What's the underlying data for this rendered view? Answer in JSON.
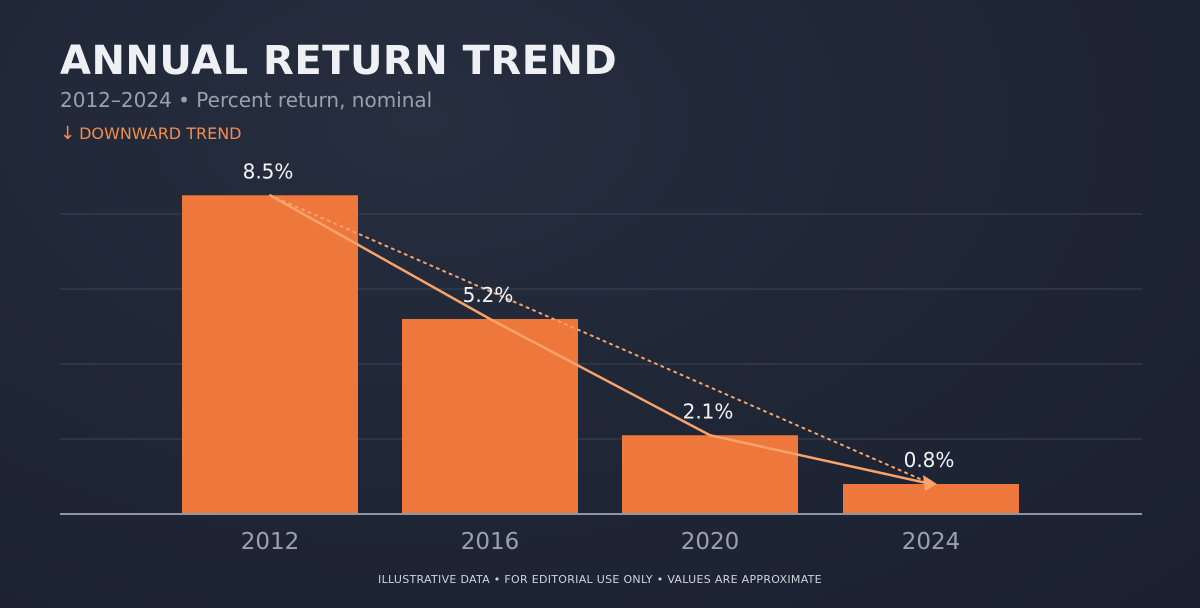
{
  "header": {
    "title": "ANNUAL RETURN TREND",
    "subtitle": "2012–2024 • Percent return, nominal",
    "trend_arrow": "↓",
    "trend_label": "DOWNWARD TREND"
  },
  "footer": {
    "note": "ILLUSTRATIVE DATA • FOR EDITORIAL USE ONLY • VALUES ARE APPROXIMATE"
  },
  "colors": {
    "bar": "#ee773c",
    "trend_line": "#f7a36c",
    "grid": "#3a4356",
    "axis": "#8e96a4",
    "tick_label": "#9aa1ad",
    "data_label": "#f2f3f5"
  },
  "chart_data": {
    "type": "bar",
    "categories": [
      "2012",
      "2016",
      "2020",
      "2024"
    ],
    "values": [
      8.5,
      5.2,
      2.1,
      0.8
    ],
    "data_labels": [
      "8.5%",
      "5.2%",
      "2.1%",
      "0.8%"
    ],
    "title": "ANNUAL RETURN TREND",
    "subtitle": "2012–2024 • Percent return, nominal",
    "xlabel": "",
    "ylabel": "",
    "ylim": [
      0,
      8
    ],
    "grid": true,
    "overlays": [
      "connecting line through bar tops",
      "dotted straight trend line from first to last bar"
    ]
  }
}
